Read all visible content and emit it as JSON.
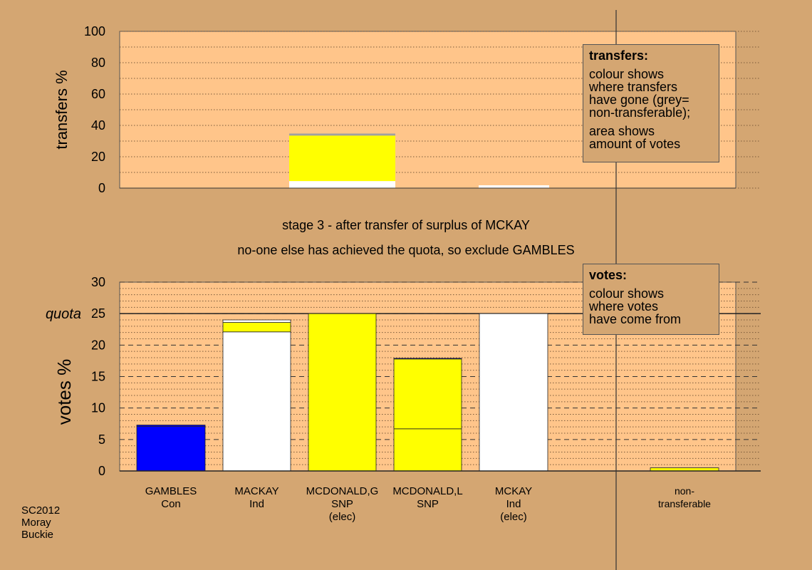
{
  "captions": {
    "line1": "stage 3 - after transfer of surplus of MCKAY",
    "line2": "no-one else has achieved the quota, so exclude GAMBLES"
  },
  "footer": {
    "line1": "SC2012",
    "line2": "Moray",
    "line3": "Buckie"
  },
  "legends": {
    "transfers": {
      "title": "transfers:",
      "lines": [
        "colour shows",
        "where transfers",
        "have gone (grey=",
        "non-transferable);",
        "area shows",
        "amount of votes"
      ]
    },
    "votes": {
      "title": "votes:",
      "lines": [
        "colour shows",
        "where votes",
        "have come from"
      ]
    }
  },
  "colors": {
    "background": "#D4A672",
    "plot_bg": "#FFC58A",
    "blue": "#0000FF",
    "yellow": "#FFFF00",
    "white": "#FFFFFF",
    "grey": "#A0A0A0"
  },
  "chart_data": [
    {
      "type": "bar",
      "ylabel": "transfers %",
      "ylim": [
        0,
        100
      ],
      "yticks": [
        "0",
        "20",
        "40",
        "60",
        "80",
        "100"
      ],
      "bars": [
        {
          "category": "MCDONALD,G SNP (elec)",
          "segments": [
            {
              "color": "white",
              "value": 4.5
            },
            {
              "color": "yellow",
              "value": 29
            },
            {
              "color": "grey",
              "value": 1.3
            }
          ]
        },
        {
          "category": "MCKAY Ind (elec)",
          "segments": [
            {
              "color": "white",
              "value": 1.8
            }
          ]
        }
      ]
    },
    {
      "type": "bar",
      "ylabel": "votes %",
      "ylim": [
        0,
        30
      ],
      "yticks": [
        "0",
        "5",
        "10",
        "15",
        "20",
        "25",
        "30"
      ],
      "quota": {
        "label": "quota",
        "value": 25
      },
      "categories": [
        {
          "name": "GAMBLES",
          "party": "Con",
          "note": ""
        },
        {
          "name": "MACKAY",
          "party": "Ind",
          "note": ""
        },
        {
          "name": "MCDONALD,G",
          "party": "SNP",
          "note": "(elec)"
        },
        {
          "name": "MCDONALD,L",
          "party": "SNP",
          "note": ""
        },
        {
          "name": "MCKAY",
          "party": "Ind",
          "note": "(elec)"
        },
        {
          "name": "non-",
          "party": "transferable",
          "note": ""
        }
      ],
      "bars": [
        {
          "segments": [
            {
              "color": "blue",
              "value": 7.1
            },
            {
              "color": "blue",
              "value": 0.2
            }
          ]
        },
        {
          "segments": [
            {
              "color": "white",
              "value": 22.1
            },
            {
              "color": "yellow",
              "value": 1.5
            },
            {
              "color": "white",
              "value": 0.4
            }
          ]
        },
        {
          "segments": [
            {
              "color": "yellow",
              "value": 25.0
            }
          ]
        },
        {
          "segments": [
            {
              "color": "yellow",
              "value": 6.7
            },
            {
              "color": "yellow",
              "value": 11.1
            },
            {
              "color": "blue",
              "value": 0.1
            }
          ]
        },
        {
          "segments": [
            {
              "color": "white",
              "value": 25.0
            }
          ]
        },
        {
          "segments": [
            {
              "color": "yellow",
              "value": 0.5
            }
          ]
        }
      ]
    }
  ]
}
